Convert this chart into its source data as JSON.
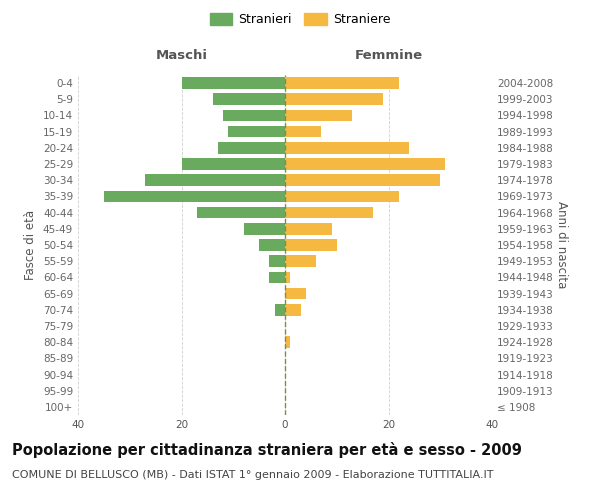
{
  "age_groups": [
    "100+",
    "95-99",
    "90-94",
    "85-89",
    "80-84",
    "75-79",
    "70-74",
    "65-69",
    "60-64",
    "55-59",
    "50-54",
    "45-49",
    "40-44",
    "35-39",
    "30-34",
    "25-29",
    "20-24",
    "15-19",
    "10-14",
    "5-9",
    "0-4"
  ],
  "birth_years": [
    "≤ 1908",
    "1909-1913",
    "1914-1918",
    "1919-1923",
    "1924-1928",
    "1929-1933",
    "1934-1938",
    "1939-1943",
    "1944-1948",
    "1949-1953",
    "1954-1958",
    "1959-1963",
    "1964-1968",
    "1969-1973",
    "1974-1978",
    "1979-1983",
    "1984-1988",
    "1989-1993",
    "1994-1998",
    "1999-2003",
    "2004-2008"
  ],
  "maschi": [
    0,
    0,
    0,
    0,
    0,
    0,
    2,
    0,
    3,
    3,
    5,
    8,
    17,
    35,
    27,
    20,
    13,
    11,
    12,
    14,
    20
  ],
  "femmine": [
    0,
    0,
    0,
    0,
    1,
    0,
    3,
    4,
    1,
    6,
    10,
    9,
    17,
    22,
    30,
    31,
    24,
    7,
    13,
    19,
    22
  ],
  "maschi_color": "#6aaa5e",
  "femmine_color": "#f5b942",
  "background_color": "#ffffff",
  "grid_color": "#d0d0d0",
  "title": "Popolazione per cittadinanza straniera per età e sesso - 2009",
  "subtitle": "COMUNE DI BELLUSCO (MB) - Dati ISTAT 1° gennaio 2009 - Elaborazione TUTTITALIA.IT",
  "ylabel_left": "Fasce di età",
  "ylabel_right": "Anni di nascita",
  "legend_maschi": "Stranieri",
  "legend_femmine": "Straniere",
  "header_maschi": "Maschi",
  "header_femmine": "Femmine",
  "xlim": 40,
  "title_fontsize": 10.5,
  "subtitle_fontsize": 8,
  "axis_label_fontsize": 8.5,
  "tick_fontsize": 7.5,
  "header_fontsize": 9.5
}
